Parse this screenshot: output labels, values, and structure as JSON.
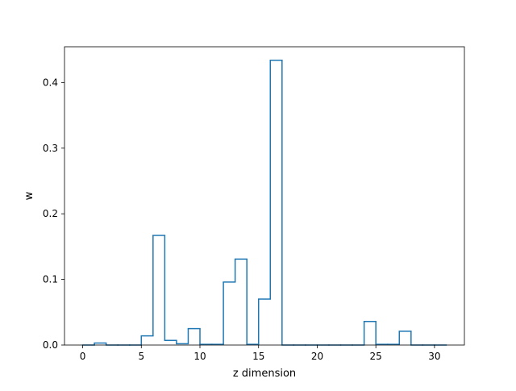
{
  "chart_data": {
    "type": "bar",
    "style": "step-histogram",
    "title": "",
    "xlabel": "z dimension",
    "ylabel": "w",
    "xlim": [
      -1.55,
      32.55
    ],
    "ylim": [
      0,
      0.4545
    ],
    "xticks": [
      0,
      5,
      10,
      15,
      20,
      25,
      30
    ],
    "yticks": [
      0.0,
      0.1,
      0.2,
      0.3,
      0.4
    ],
    "xtick_labels": [
      "0",
      "5",
      "10",
      "15",
      "20",
      "25",
      "30"
    ],
    "ytick_labels": [
      "0.0",
      "0.1",
      "0.2",
      "0.3",
      "0.4"
    ],
    "grid": false,
    "legend": "none",
    "line_color": "#1f77b4",
    "x_start": 0,
    "bin_width": 1,
    "values": [
      0.0,
      0.003,
      0.0,
      0.0,
      0.0,
      0.014,
      0.167,
      0.007,
      0.002,
      0.025,
      0.001,
      0.001,
      0.096,
      0.131,
      0.001,
      0.07,
      0.434,
      0.0,
      0.0,
      0.0,
      0.0,
      0.0,
      0.0,
      0.0,
      0.036,
      0.001,
      0.001,
      0.021,
      0.0,
      0.0,
      0.0
    ]
  }
}
